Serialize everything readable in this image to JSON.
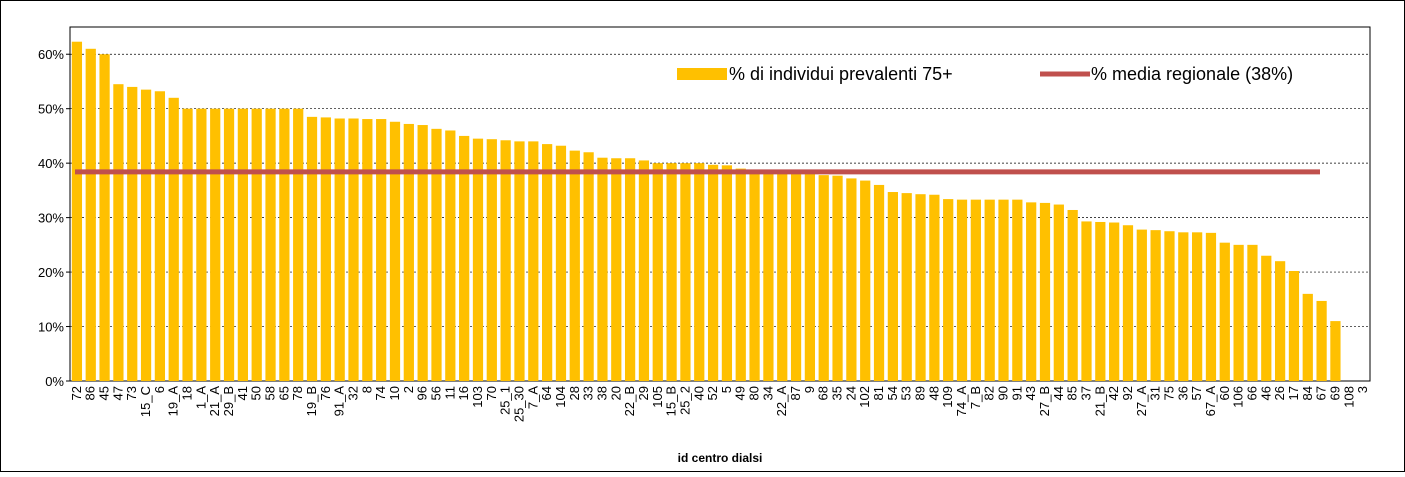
{
  "chart_data": {
    "type": "bar",
    "x_label": "id centro dialsi",
    "categories": [
      "72",
      "86",
      "45",
      "47",
      "73",
      "15_C",
      "6",
      "19_A",
      "18",
      "1_A",
      "21_A",
      "29_B",
      "41",
      "50",
      "58",
      "65",
      "78",
      "19_B",
      "76",
      "91_A",
      "32",
      "8",
      "74",
      "10",
      "2",
      "96",
      "56",
      "11",
      "16",
      "103",
      "70",
      "25_1",
      "25_30",
      "7_A",
      "64",
      "104",
      "28",
      "33",
      "38",
      "20",
      "22_B",
      "29",
      "105",
      "15_B",
      "25_2",
      "40",
      "52",
      "5",
      "49",
      "80",
      "34",
      "22_A",
      "87",
      "9",
      "68",
      "35",
      "24",
      "102",
      "81",
      "54",
      "53",
      "89",
      "48",
      "109",
      "74_A",
      "7_B",
      "82",
      "90",
      "91",
      "43",
      "27_B",
      "44",
      "85",
      "37",
      "21_B",
      "42",
      "92",
      "27_A",
      "31",
      "75",
      "36",
      "57",
      "67_A",
      "60",
      "106",
      "66",
      "46",
      "26",
      "17",
      "84",
      "67",
      "69",
      "108",
      "3"
    ],
    "series": [
      {
        "name": "% di individui prevalenti 75+",
        "color": "#ffc000",
        "values": [
          62.3,
          61,
          60,
          54.5,
          54,
          53.5,
          53.2,
          52,
          50,
          50,
          50,
          50,
          50,
          50,
          50,
          50,
          50,
          48.5,
          48.4,
          48.2,
          48.2,
          48.1,
          48.1,
          47.6,
          47.2,
          47,
          46.3,
          46,
          45,
          44.5,
          44.4,
          44.2,
          44,
          44,
          43.5,
          43.2,
          42.3,
          42,
          41,
          40.9,
          40.9,
          40.5,
          40,
          40,
          40,
          40,
          39.7,
          39.6,
          39,
          38.5,
          38.3,
          38.2,
          38,
          38,
          37.8,
          37.7,
          37.2,
          36.8,
          36,
          34.7,
          34.5,
          34.3,
          34.2,
          33.4,
          33.3,
          33.3,
          33.3,
          33.3,
          33.3,
          32.8,
          32.7,
          32.4,
          31.4,
          29.3,
          29.2,
          29.1,
          28.6,
          27.8,
          27.7,
          27.5,
          27.3,
          27.3,
          27.2,
          25.4,
          25,
          25,
          23,
          22,
          20.2,
          16,
          14.7,
          11,
          0,
          0
        ]
      }
    ],
    "reference_line": {
      "name": "% media regionale (38%)",
      "value": 38.4,
      "color": "#c0504d"
    },
    "ylim": [
      0,
      65
    ],
    "yticks": [
      {
        "value": 0,
        "label": "0%"
      },
      {
        "value": 10,
        "label": "10%"
      },
      {
        "value": 20,
        "label": "20%"
      },
      {
        "value": 30,
        "label": "30%"
      },
      {
        "value": 40,
        "label": "40%"
      },
      {
        "value": 50,
        "label": "50%"
      },
      {
        "value": 60,
        "label": "60%"
      }
    ],
    "grid": true
  }
}
